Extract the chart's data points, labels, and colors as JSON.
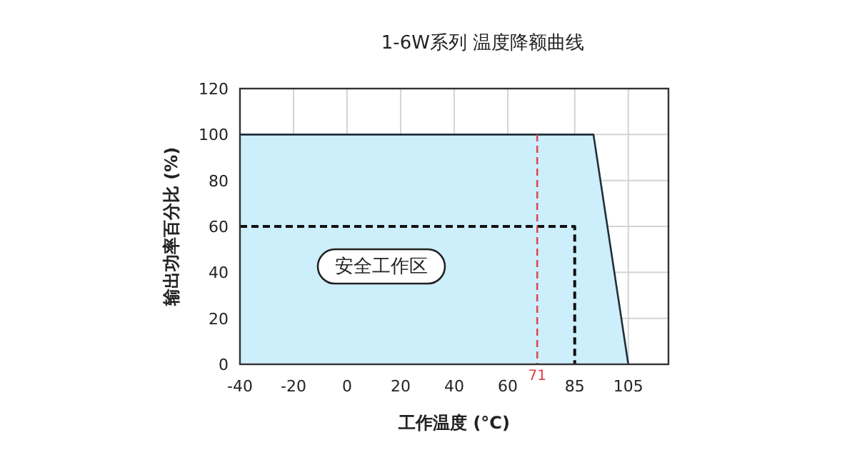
{
  "chart_data": {
    "type": "area",
    "title": "1-6W系列 温度降额曲线",
    "xlabel": "工作温度 (°C)",
    "ylabel": "输出功率百分比 (%)",
    "xlim": [
      -40,
      120
    ],
    "ylim": [
      0,
      120
    ],
    "xticks": [
      -40,
      -20,
      0,
      20,
      40,
      60,
      85,
      105
    ],
    "yticks": [
      0,
      20,
      40,
      60,
      80,
      100,
      120
    ],
    "grid": true,
    "series": [
      {
        "color": "#cdeefb",
        "x": [
          -40,
          92,
          105
        ],
        "values": [
          100,
          100,
          0
        ]
      },
      {
        "type": "line",
        "color": "#111111",
        "line_style": "dashed",
        "x": [
          -40,
          85,
          85
        ],
        "values": [
          60,
          60,
          0
        ]
      }
    ],
    "ref_lines": [
      {
        "axis": "x",
        "value": 71,
        "label": "71",
        "color": "#e0404a",
        "line_style": "dashed"
      }
    ],
    "annotations": [
      "安全工作区"
    ]
  }
}
